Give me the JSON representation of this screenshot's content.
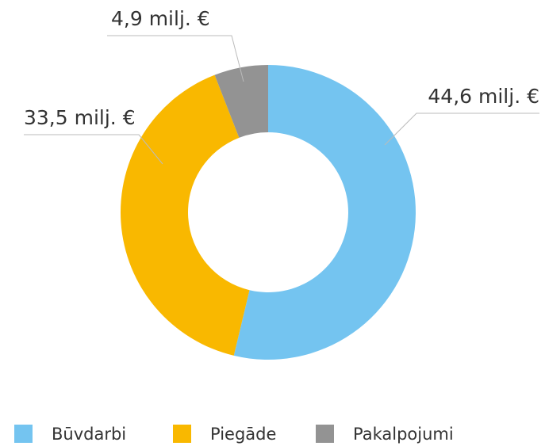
{
  "chart_data": {
    "type": "donut",
    "categories": [
      "Būvdarbi",
      "Piegāde",
      "Pakalpojumi"
    ],
    "values": [
      44.6,
      33.5,
      4.9
    ],
    "value_labels": [
      "44,6 milj. €",
      "33,5 milj. €",
      "4,9 milj. €"
    ],
    "colors": [
      "#74c4f0",
      "#f9b800",
      "#939393"
    ],
    "legend": "bottom"
  }
}
